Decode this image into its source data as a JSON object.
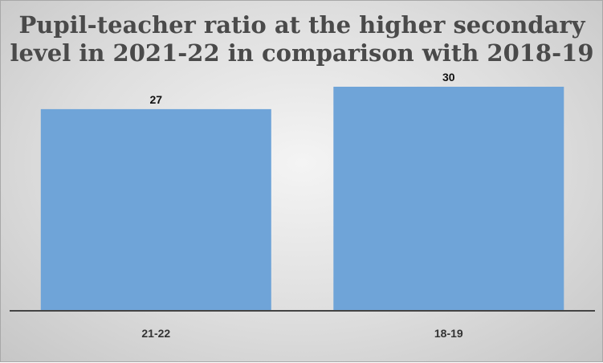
{
  "chart_data": {
    "type": "bar",
    "title_lines": [
      "Pupil-teacher ratio at the higher secondary",
      "level in 2021-22 in comparison with 2018-19"
    ],
    "categories": [
      "21-22",
      "18-19"
    ],
    "values": [
      27,
      30
    ],
    "xlabel": "",
    "ylabel": "",
    "grid": false,
    "legend": "none",
    "colors": {
      "bar": "#6fa4d8",
      "axis": "#444444",
      "title": "#4a4a4a"
    }
  }
}
